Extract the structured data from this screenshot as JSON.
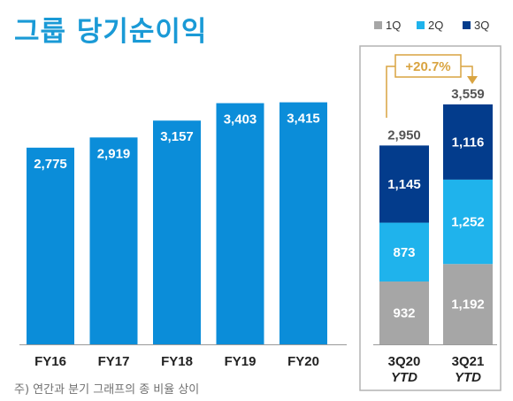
{
  "title": "그룹 당기순이익",
  "footnote": "주) 연간과 분기 그래프의 종 비율 상이",
  "colors": {
    "annual": "#0b8dd9",
    "q1": "#a6a6a6",
    "q2": "#1fb3ec",
    "q3": "#033c8c",
    "growth": "#d9a441",
    "panel_border": "#b3b3b3"
  },
  "chart_data": [
    {
      "type": "bar",
      "categories": [
        "FY16",
        "FY17",
        "FY18",
        "FY19",
        "FY20"
      ],
      "values": [
        2775,
        2919,
        3157,
        3403,
        3415
      ],
      "value_labels": [
        "2,775",
        "2,919",
        "3,157",
        "3,403",
        "3,415"
      ],
      "title": "그룹 당기순이익",
      "xlabel": "",
      "ylabel": "",
      "ylim": [
        0,
        3600
      ],
      "grid": false
    },
    {
      "type": "bar",
      "stacked": true,
      "categories": [
        "3Q20 YTD",
        "3Q21 YTD"
      ],
      "category_lines": [
        [
          "3Q20",
          "YTD"
        ],
        [
          "3Q21",
          "YTD"
        ]
      ],
      "series": [
        {
          "name": "1Q",
          "values": [
            932,
            1192
          ],
          "labels": [
            "932",
            "1,192"
          ]
        },
        {
          "name": "2Q",
          "values": [
            873,
            1252
          ],
          "labels": [
            "873",
            "1,252"
          ]
        },
        {
          "name": "3Q",
          "values": [
            1145,
            1116
          ],
          "labels": [
            "1,145",
            "1,116"
          ]
        }
      ],
      "totals": [
        2950,
        3559
      ],
      "total_labels": [
        "2,950",
        "3,559"
      ],
      "growth_label": "+20.7%",
      "legend": "top",
      "ylim": [
        0,
        3600
      ],
      "grid": false
    }
  ]
}
